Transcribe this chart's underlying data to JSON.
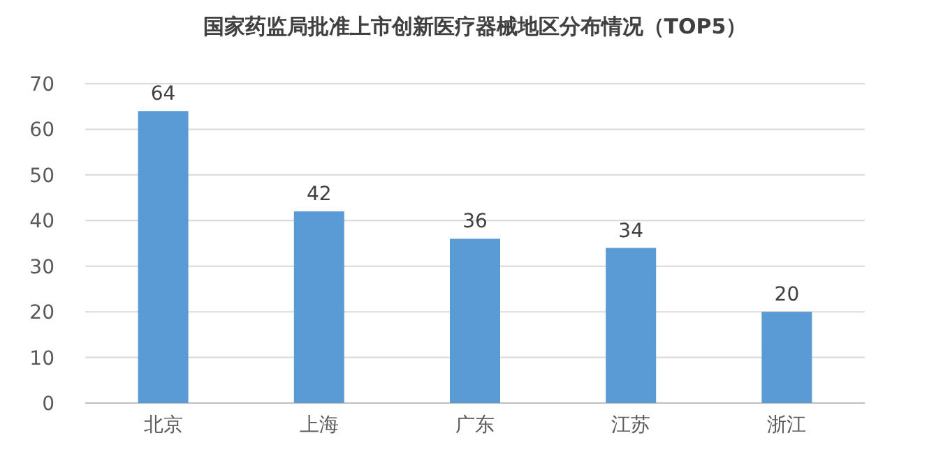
{
  "chart_data": {
    "type": "bar",
    "title": "国家药监局批准上市创新医疗器械地区分布情况（TOP5）",
    "categories": [
      "北京",
      "上海",
      "广东",
      "江苏",
      "浙江"
    ],
    "values": [
      64,
      42,
      36,
      34,
      20
    ],
    "color": "#5b9bd5",
    "ylim": [
      0,
      70
    ],
    "yticks": [
      0,
      10,
      20,
      30,
      40,
      50,
      60,
      70
    ],
    "grid": "y",
    "data_labels": true
  }
}
